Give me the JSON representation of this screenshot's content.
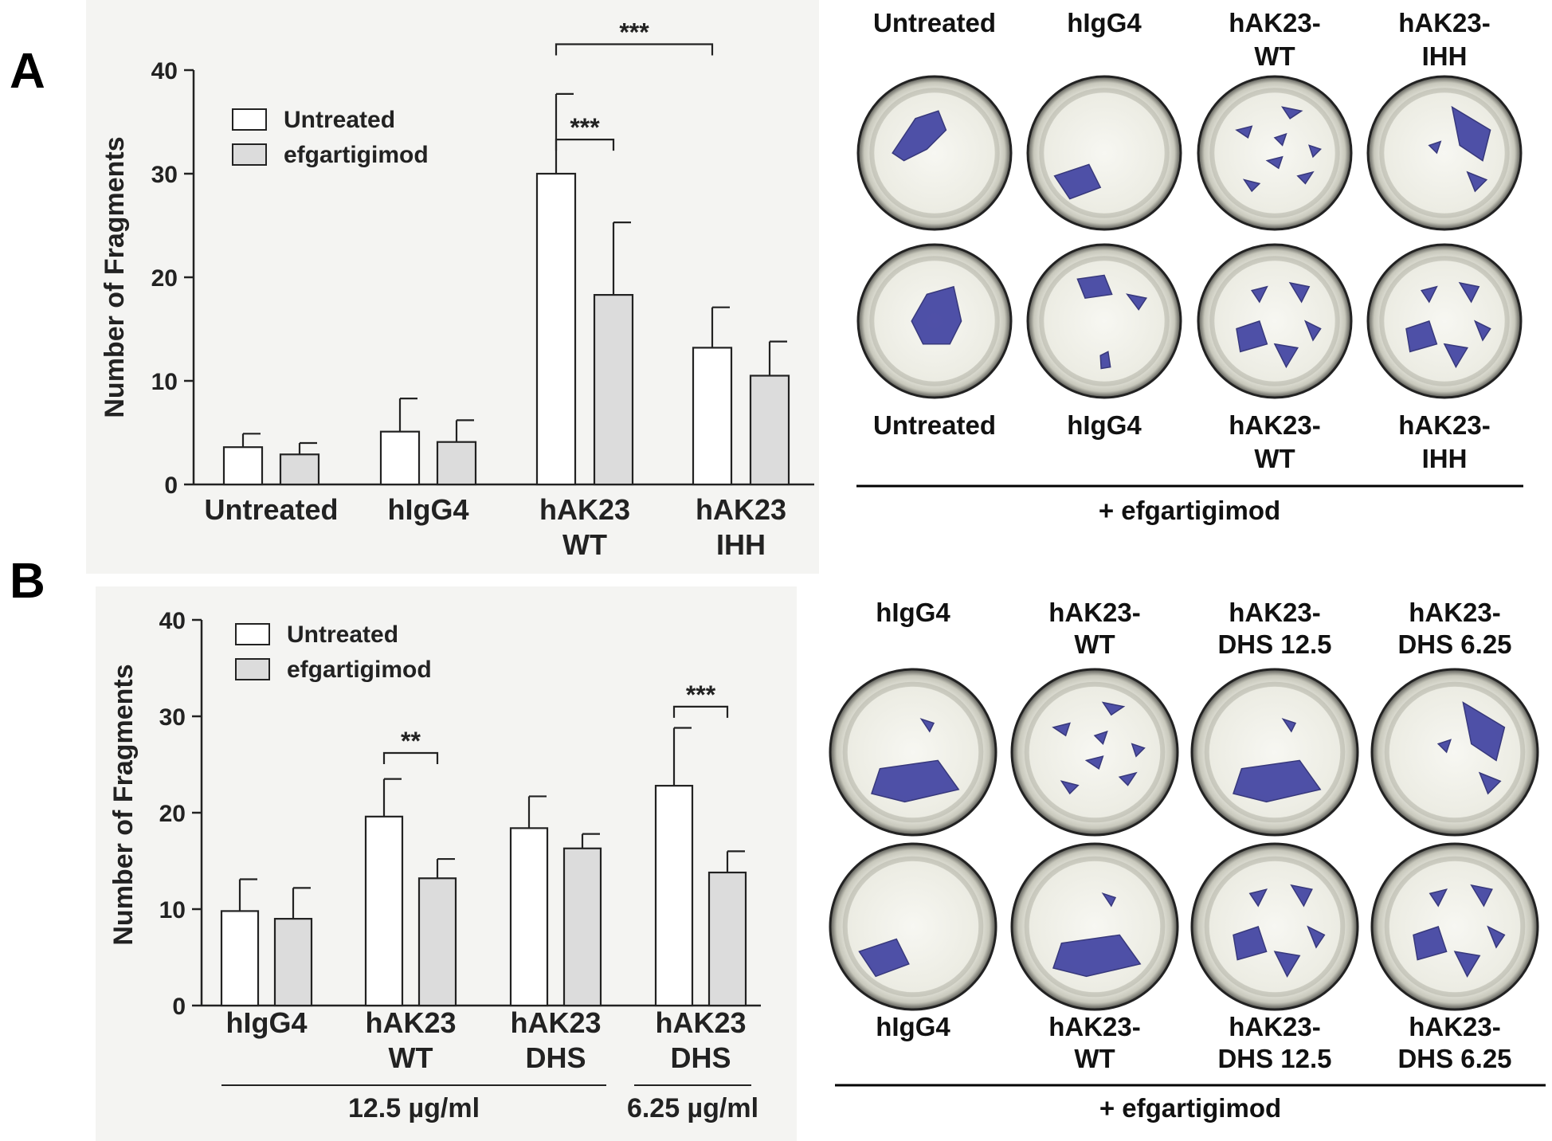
{
  "panels": [
    {
      "letter": "A",
      "chart_data": {
        "type": "bar",
        "title": "",
        "xlabel": "",
        "ylabel": "Number of Fragments",
        "ylim": [
          0,
          40
        ],
        "yticks": [
          0,
          10,
          20,
          30,
          40
        ],
        "grid": false,
        "legend_position": "top-left",
        "categories": [
          [
            "Untreated"
          ],
          [
            "hIgG4"
          ],
          [
            "hAK23",
            "WT"
          ],
          [
            "hAK23",
            "IHH"
          ]
        ],
        "series": [
          {
            "name": "Untreated",
            "color": "#ffffff",
            "values": [
              3.6,
              5.1,
              30.0,
              13.2
            ],
            "errors": [
              1.3,
              3.2,
              7.7,
              3.9
            ]
          },
          {
            "name": "efgartigimod",
            "color": "#dcdcdc",
            "values": [
              2.9,
              4.1,
              18.3,
              10.5
            ],
            "errors": [
              1.1,
              2.1,
              7.0,
              3.3
            ]
          }
        ],
        "significance": [
          {
            "label": "***",
            "from": [
              2,
              0
            ],
            "to": [
              2,
              1
            ],
            "y": 33.3
          },
          {
            "label": "***",
            "from": [
              2,
              0
            ],
            "to": [
              3,
              0
            ],
            "y": 42.5
          }
        ],
        "group_labels": []
      },
      "plates": {
        "top_labels": [
          [
            "Untreated"
          ],
          [
            "hIgG4"
          ],
          [
            "hAK23-",
            "WT"
          ],
          [
            "hAK23-",
            "IHH"
          ]
        ],
        "bottom_labels": [
          [
            "Untreated"
          ],
          [
            "hIgG4"
          ],
          [
            "hAK23-",
            "WT"
          ],
          [
            "hAK23-",
            "IHH"
          ]
        ],
        "footer": "+ efgartigimod"
      }
    },
    {
      "letter": "B",
      "chart_data": {
        "type": "bar",
        "title": "",
        "xlabel": "",
        "ylabel": "Number of Fragments",
        "ylim": [
          0,
          40
        ],
        "yticks": [
          0,
          10,
          20,
          30,
          40
        ],
        "grid": false,
        "legend_position": "top-left",
        "categories": [
          [
            "hIgG4"
          ],
          [
            "hAK23",
            "WT"
          ],
          [
            "hAK23",
            "DHS"
          ],
          [
            "hAK23",
            "DHS"
          ]
        ],
        "series": [
          {
            "name": "Untreated",
            "color": "#ffffff",
            "values": [
              9.8,
              19.6,
              18.4,
              22.8
            ],
            "errors": [
              3.3,
              3.9,
              3.3,
              6.0
            ]
          },
          {
            "name": "efgartigimod",
            "color": "#dcdcdc",
            "values": [
              9.0,
              13.2,
              16.3,
              13.8
            ],
            "errors": [
              3.2,
              2.0,
              1.5,
              2.2
            ]
          }
        ],
        "significance": [
          {
            "label": "**",
            "from": [
              1,
              0
            ],
            "to": [
              1,
              1
            ],
            "y": 26.2
          },
          {
            "label": "***",
            "from": [
              3,
              0
            ],
            "to": [
              3,
              1
            ],
            "y": 31.0
          }
        ],
        "group_labels": [
          {
            "label": "12.5 µg/ml",
            "from": 0,
            "to": 2
          },
          {
            "label": "6.25 µg/ml",
            "from": 3,
            "to": 3
          }
        ]
      },
      "plates": {
        "top_labels": [
          [
            "hIgG4"
          ],
          [
            "hAK23-",
            "WT"
          ],
          [
            "hAK23-",
            "DHS 12.5"
          ],
          [
            "hAK23-",
            "DHS 6.25"
          ]
        ],
        "bottom_labels": [
          [
            "hIgG4"
          ],
          [
            "hAK23-",
            "WT"
          ],
          [
            "hAK23-",
            "DHS 12.5"
          ],
          [
            "hAK23-",
            "DHS 6.25"
          ]
        ],
        "footer": "+ efgartigimod"
      }
    }
  ]
}
